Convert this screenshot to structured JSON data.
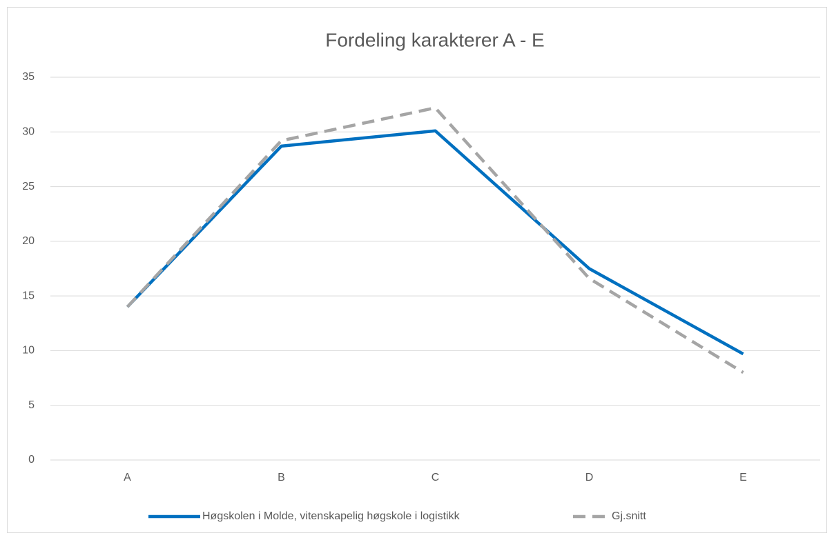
{
  "chart_data": {
    "type": "line",
    "title": "Fordeling karakterer A - E",
    "categories": [
      "A",
      "B",
      "C",
      "D",
      "E"
    ],
    "series": [
      {
        "name": "Høgskolen i Molde, vitenskapelig høgskole i logistikk",
        "color": "#0070c0",
        "dash": false,
        "values": [
          14,
          28.7,
          30.1,
          17.5,
          9.7
        ]
      },
      {
        "name": "Gj.snitt",
        "color": "#a5a5a5",
        "dash": true,
        "values": [
          14,
          29.2,
          32.2,
          16.6,
          8.0
        ]
      }
    ],
    "ylim": [
      0,
      35
    ],
    "yticks": [
      0,
      5,
      10,
      15,
      20,
      25,
      30,
      35
    ],
    "grid": true,
    "legend": "bottom"
  }
}
